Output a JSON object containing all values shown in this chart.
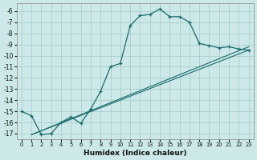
{
  "xlabel": "Humidex (Indice chaleur)",
  "bg_color": "#cce8e8",
  "grid_color": "#aacece",
  "line_color": "#1a6b6b",
  "xlim": [
    -0.5,
    23.5
  ],
  "ylim": [
    -17.5,
    -5.3
  ],
  "yticks": [
    -17,
    -16,
    -15,
    -14,
    -13,
    -12,
    -11,
    -10,
    -9,
    -8,
    -7,
    -6
  ],
  "xticks": [
    0,
    1,
    2,
    3,
    4,
    5,
    6,
    7,
    8,
    9,
    10,
    11,
    12,
    13,
    14,
    15,
    16,
    17,
    18,
    19,
    20,
    21,
    22,
    23
  ],
  "curve1_x": [
    0,
    1,
    2,
    3,
    4,
    5,
    6,
    7,
    8,
    9,
    10,
    11,
    12,
    13,
    14,
    15,
    16,
    17,
    18,
    19,
    20,
    21,
    22,
    23
  ],
  "curve1_y": [
    -15.0,
    -15.4,
    -17.1,
    -17.0,
    -16.0,
    -15.5,
    -16.1,
    -14.8,
    -13.2,
    -11.0,
    -10.7,
    -7.3,
    -6.4,
    -6.3,
    -5.8,
    -6.5,
    -6.5,
    -7.0,
    -8.9,
    -9.1,
    -9.3,
    -9.2,
    -9.4,
    -9.5
  ],
  "curve2_x": [
    1,
    23
  ],
  "curve2_y": [
    -17.1,
    -9.2
  ],
  "curve3_x": [
    1,
    23
  ],
  "curve3_y": [
    -17.1,
    -9.5
  ]
}
